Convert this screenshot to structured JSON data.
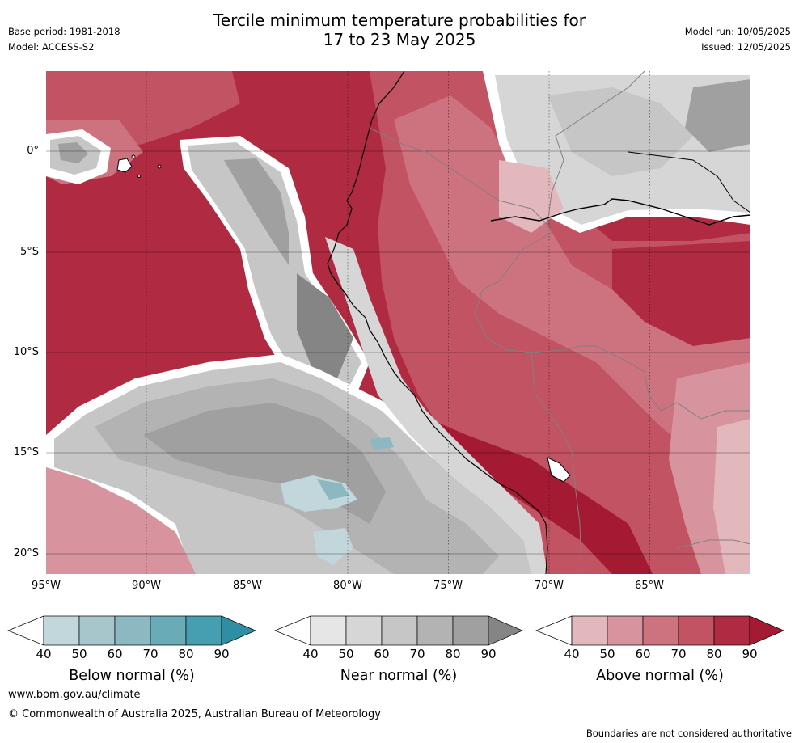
{
  "header": {
    "base_period": "Base period: 1981-2018",
    "model": "Model: ACCESS-S2",
    "title_line1": "Tercile minimum temperature probabilities for",
    "title_line2": "17 to 23 May 2025",
    "model_run": "Model run: 10/05/2025",
    "issued": "Issued: 12/05/2025"
  },
  "map": {
    "lat_labels": [
      "0°",
      "5°S",
      "10°S",
      "15°S",
      "20°S"
    ],
    "lon_labels": [
      "95°W",
      "90°W",
      "85°W",
      "80°W",
      "75°W",
      "70°W",
      "65°W"
    ]
  },
  "legends": [
    {
      "label": "Below normal (%)",
      "ticks": [
        "40",
        "50",
        "60",
        "70",
        "80",
        "90"
      ],
      "colors": [
        "#c1d7dc",
        "#a7c6cc",
        "#8cb8c2",
        "#6aabb8",
        "#469fb0",
        "#2f8ea2"
      ]
    },
    {
      "label": "Near normal (%)",
      "ticks": [
        "40",
        "50",
        "60",
        "70",
        "80",
        "90"
      ],
      "colors": [
        "#e6e6e6",
        "#d6d6d6",
        "#c6c6c6",
        "#b3b3b3",
        "#a0a0a0",
        "#858585"
      ]
    },
    {
      "label": "Above normal (%)",
      "ticks": [
        "40",
        "50",
        "60",
        "70",
        "80",
        "90"
      ],
      "colors": [
        "#e2b8bd",
        "#d7949e",
        "#cd727f",
        "#c25363",
        "#b02a42",
        "#a51a33"
      ]
    }
  ],
  "footer": {
    "website": "www.bom.gov.au/climate",
    "copyright": "© Commonwealth of Australia 2025, Australian Bureau of Meteorology",
    "disclaimer": "Boundaries are not considered authoritative"
  }
}
